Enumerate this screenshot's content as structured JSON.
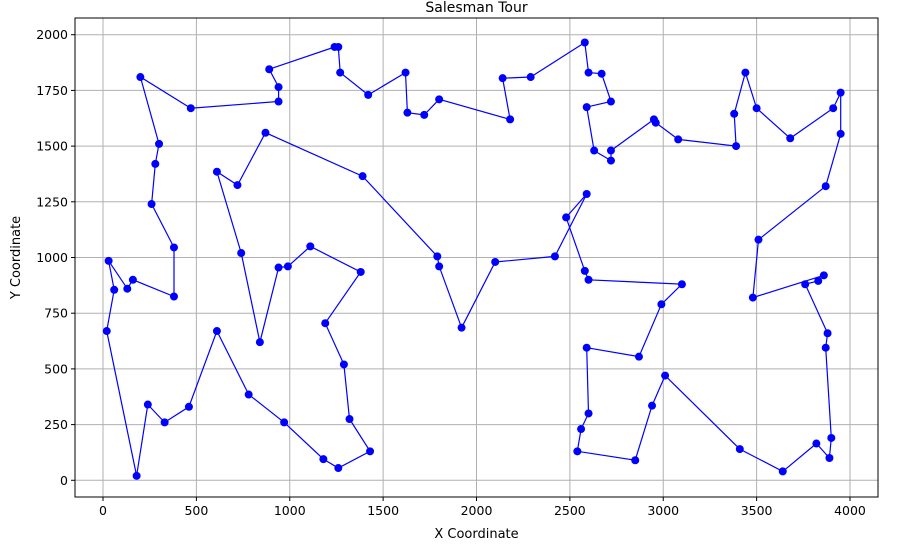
{
  "chart_data": {
    "type": "line",
    "title": "Salesman Tour",
    "xlabel": "X Coordinate",
    "ylabel": "Y Coordinate",
    "xlim": [
      -150,
      4150
    ],
    "ylim": [
      -75,
      2075
    ],
    "xticks": [
      0,
      500,
      1000,
      1500,
      2000,
      2500,
      3000,
      3500,
      4000
    ],
    "yticks": [
      0,
      250,
      500,
      750,
      1000,
      1250,
      1500,
      1750,
      2000
    ],
    "grid": true,
    "series": [
      {
        "color": "#0000ff",
        "marker": "circle",
        "closed": true,
        "points": [
          [
            1920,
            685
          ],
          [
            1800,
            960
          ],
          [
            1790,
            1005
          ],
          [
            1390,
            1365
          ],
          [
            870,
            1560
          ],
          [
            720,
            1325
          ],
          [
            610,
            1385
          ],
          [
            740,
            1020
          ],
          [
            840,
            620
          ],
          [
            940,
            955
          ],
          [
            990,
            960
          ],
          [
            1110,
            1050
          ],
          [
            1380,
            935
          ],
          [
            1190,
            705
          ],
          [
            1290,
            520
          ],
          [
            1320,
            275
          ],
          [
            1430,
            130
          ],
          [
            1260,
            55
          ],
          [
            1180,
            95
          ],
          [
            970,
            260
          ],
          [
            780,
            385
          ],
          [
            610,
            670
          ],
          [
            460,
            330
          ],
          [
            330,
            260
          ],
          [
            240,
            340
          ],
          [
            180,
            20
          ],
          [
            20,
            670
          ],
          [
            60,
            855
          ],
          [
            30,
            985
          ],
          [
            130,
            860
          ],
          [
            160,
            900
          ],
          [
            380,
            825
          ],
          [
            380,
            1045
          ],
          [
            260,
            1240
          ],
          [
            280,
            1420
          ],
          [
            300,
            1510
          ],
          [
            200,
            1810
          ],
          [
            470,
            1670
          ],
          [
            940,
            1700
          ],
          [
            940,
            1765
          ],
          [
            890,
            1845
          ],
          [
            1240,
            1945
          ],
          [
            1260,
            1945
          ],
          [
            1270,
            1830
          ],
          [
            1420,
            1730
          ],
          [
            1620,
            1830
          ],
          [
            1630,
            1650
          ],
          [
            1720,
            1640
          ],
          [
            1800,
            1710
          ],
          [
            2180,
            1620
          ],
          [
            2140,
            1805
          ],
          [
            2290,
            1810
          ],
          [
            2580,
            1965
          ],
          [
            2600,
            1830
          ],
          [
            2670,
            1825
          ],
          [
            2720,
            1700
          ],
          [
            2590,
            1675
          ],
          [
            2630,
            1480
          ],
          [
            2720,
            1435
          ],
          [
            2720,
            1480
          ],
          [
            2950,
            1620
          ],
          [
            2960,
            1605
          ],
          [
            3080,
            1530
          ],
          [
            3390,
            1500
          ],
          [
            3380,
            1645
          ],
          [
            3440,
            1830
          ],
          [
            3500,
            1670
          ],
          [
            3680,
            1535
          ],
          [
            3910,
            1670
          ],
          [
            3950,
            1740
          ],
          [
            3950,
            1555
          ],
          [
            3870,
            1320
          ],
          [
            3510,
            1080
          ],
          [
            3480,
            820
          ],
          [
            3860,
            920
          ],
          [
            3830,
            895
          ],
          [
            3760,
            880
          ],
          [
            3880,
            660
          ],
          [
            3870,
            595
          ],
          [
            3900,
            190
          ],
          [
            3890,
            100
          ],
          [
            3820,
            165
          ],
          [
            3640,
            40
          ],
          [
            3410,
            140
          ],
          [
            3010,
            470
          ],
          [
            2940,
            335
          ],
          [
            2850,
            90
          ],
          [
            2540,
            130
          ],
          [
            2560,
            230
          ],
          [
            2600,
            300
          ],
          [
            2590,
            595
          ],
          [
            2870,
            555
          ],
          [
            2990,
            790
          ],
          [
            3100,
            880
          ],
          [
            2600,
            900
          ],
          [
            2580,
            940
          ],
          [
            2480,
            1180
          ],
          [
            2590,
            1285
          ],
          [
            2420,
            1005
          ],
          [
            2100,
            980
          ]
        ]
      }
    ]
  }
}
